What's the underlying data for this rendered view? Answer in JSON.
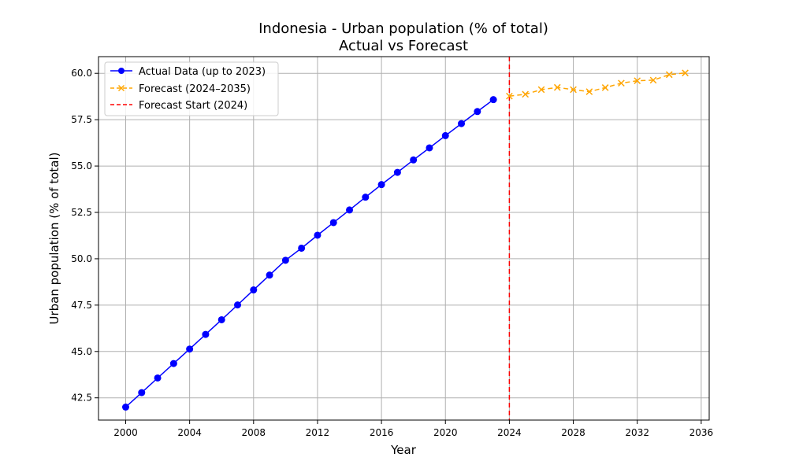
{
  "chart_data": {
    "type": "line",
    "title": "Indonesia - Urban population (% of total)",
    "subtitle": "Actual vs Forecast",
    "xlabel": "Year",
    "ylabel": "Urban population (% of total)",
    "xlim": [
      1998.3,
      2036.5
    ],
    "ylim": [
      41.3,
      60.9
    ],
    "xticks": [
      2000,
      2004,
      2008,
      2012,
      2016,
      2020,
      2024,
      2028,
      2032,
      2036
    ],
    "yticks": [
      42.5,
      45.0,
      47.5,
      50.0,
      52.5,
      55.0,
      57.5,
      60.0
    ],
    "ytick_labels": [
      "42.5",
      "45.0",
      "47.5",
      "50.0",
      "52.5",
      "55.0",
      "57.5",
      "60.0"
    ],
    "grid": true,
    "legend_position": "top-left",
    "series": [
      {
        "name": "Actual Data (up to 2023)",
        "style": "solid",
        "marker": "circle",
        "color": "#0000ff",
        "x": [
          2000,
          2001,
          2002,
          2003,
          2004,
          2005,
          2006,
          2007,
          2008,
          2009,
          2010,
          2011,
          2012,
          2013,
          2014,
          2015,
          2016,
          2017,
          2018,
          2019,
          2020,
          2021,
          2022,
          2023
        ],
        "y": [
          42.0,
          42.78,
          43.57,
          44.35,
          45.13,
          45.92,
          46.71,
          47.51,
          48.32,
          49.12,
          49.92,
          50.57,
          51.27,
          51.95,
          52.63,
          53.32,
          54.0,
          54.66,
          55.33,
          55.98,
          56.64,
          57.29,
          57.94,
          58.58
        ]
      },
      {
        "name": "Forecast (2024–2035)",
        "style": "dashed",
        "marker": "x",
        "color": "#ffa500",
        "x": [
          2024,
          2025,
          2026,
          2027,
          2028,
          2029,
          2030,
          2031,
          2032,
          2033,
          2034,
          2035
        ],
        "y": [
          58.77,
          58.87,
          59.12,
          59.24,
          59.12,
          59.01,
          59.23,
          59.47,
          59.6,
          59.63,
          59.93,
          60.02
        ]
      }
    ],
    "vline": {
      "name": "Forecast Start (2024)",
      "x": 2024,
      "style": "dashed",
      "color": "#ff0000"
    }
  }
}
